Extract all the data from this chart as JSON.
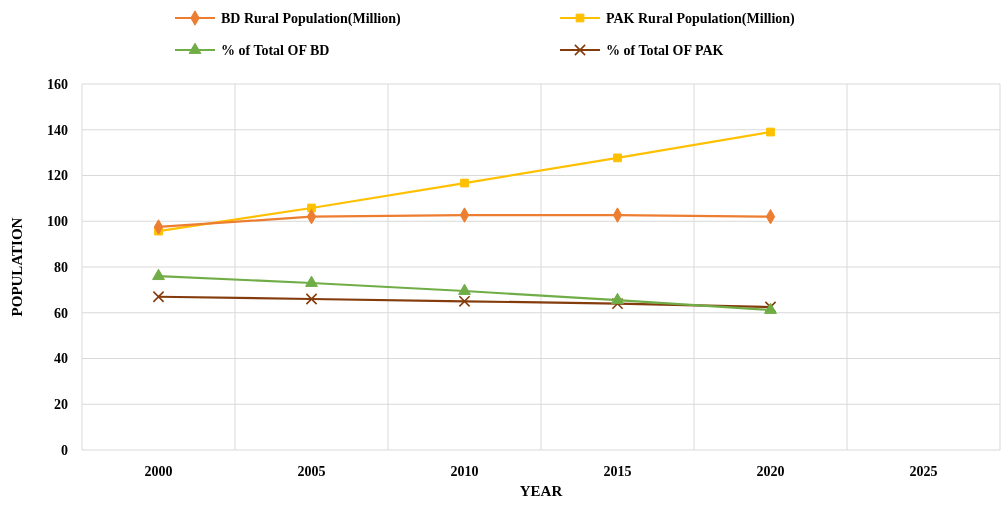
{
  "chart_data": {
    "type": "line",
    "xlabel": "YEAR",
    "ylabel": "POPULATION",
    "categories": [
      "2000",
      "2005",
      "2010",
      "2015",
      "2020",
      "2025"
    ],
    "ylim": [
      0,
      160
    ],
    "yticks": [
      0,
      20,
      40,
      60,
      80,
      100,
      120,
      140,
      160
    ],
    "grid": true,
    "legend": "top",
    "series": [
      {
        "name": "BD Rural Population(Million)",
        "color": "#ed7d31",
        "marker": "diamond",
        "values": [
          97.5,
          102,
          102.7,
          102.7,
          102,
          null
        ]
      },
      {
        "name": "PAK Rural Population(Million)",
        "color": "#ffc000",
        "marker": "square",
        "values": [
          95.7,
          105.8,
          116.7,
          127.7,
          139,
          null
        ]
      },
      {
        "name": "% of Total OF BD",
        "color": "#70ad47",
        "marker": "triangle",
        "values": [
          76,
          73,
          69.5,
          65.5,
          61.2,
          null
        ]
      },
      {
        "name": "% of Total OF PAK",
        "color": "#843c0c",
        "marker": "cross",
        "values": [
          67,
          66,
          65,
          64,
          62.5,
          null
        ]
      }
    ]
  }
}
